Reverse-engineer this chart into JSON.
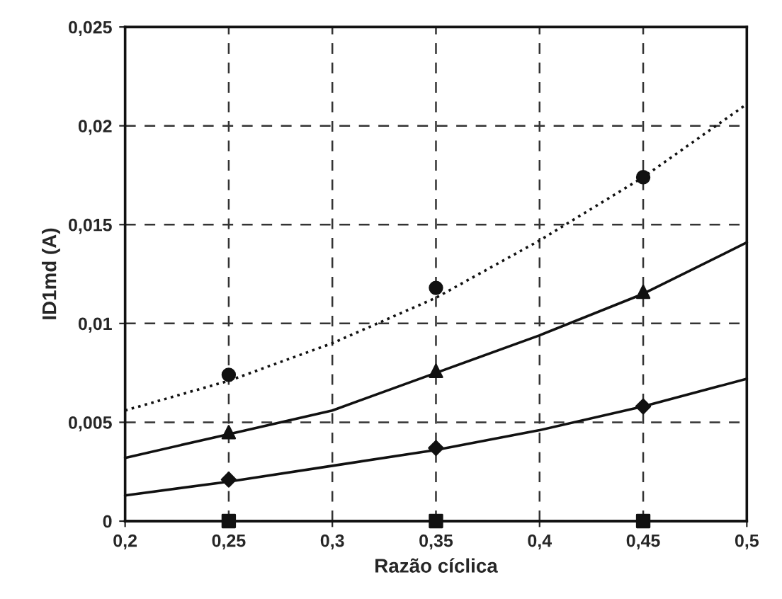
{
  "chart_data": {
    "type": "line",
    "xlabel": "Razão cíclica",
    "ylabel": "ID1md (A)",
    "xlim": [
      0.2,
      0.5
    ],
    "ylim": [
      0,
      0.025
    ],
    "xticks": [
      {
        "value": 0.2,
        "label": "0,2"
      },
      {
        "value": 0.25,
        "label": "0,25"
      },
      {
        "value": 0.3,
        "label": "0,3"
      },
      {
        "value": 0.35,
        "label": "0,35"
      },
      {
        "value": 0.4,
        "label": "0,4"
      },
      {
        "value": 0.45,
        "label": "0,45"
      },
      {
        "value": 0.5,
        "label": "0,5"
      }
    ],
    "yticks": [
      {
        "value": 0,
        "label": "0"
      },
      {
        "value": 0.005,
        "label": "0,005"
      },
      {
        "value": 0.01,
        "label": "0,01"
      },
      {
        "value": 0.015,
        "label": "0,015"
      },
      {
        "value": 0.02,
        "label": "0,02"
      },
      {
        "value": 0.025,
        "label": "0,025"
      }
    ],
    "grid": true,
    "legend": false,
    "series": [
      {
        "color": "#111111",
        "line_style": "dotted",
        "marker": "none",
        "x": [
          0.2,
          0.25,
          0.3,
          0.35,
          0.4,
          0.45,
          0.5
        ],
        "values": [
          0.0056,
          0.0071,
          0.009,
          0.0113,
          0.0142,
          0.0174,
          0.0211
        ]
      },
      {
        "color": "#111111",
        "line_style": "solid",
        "marker": "none",
        "x": [
          0.2,
          0.25,
          0.3,
          0.35,
          0.4,
          0.45,
          0.5
        ],
        "values": [
          0.0032,
          0.0044,
          0.0056,
          0.0075,
          0.0094,
          0.0115,
          0.0141
        ]
      },
      {
        "color": "#111111",
        "line_style": "solid",
        "marker": "none",
        "x": [
          0.2,
          0.25,
          0.3,
          0.35,
          0.4,
          0.45,
          0.5
        ],
        "values": [
          0.0013,
          0.002,
          0.0028,
          0.0036,
          0.0046,
          0.0058,
          0.0072
        ]
      },
      {
        "color": "#111111",
        "line_style": "solid",
        "marker": "none",
        "x": [
          0.2,
          0.5
        ],
        "values": [
          0,
          0
        ]
      },
      {
        "type": "scatter",
        "color": "#111111",
        "marker": "circle",
        "x": [
          0.25,
          0.35,
          0.45
        ],
        "values": [
          0.0074,
          0.0118,
          0.0174
        ]
      },
      {
        "type": "scatter",
        "color": "#111111",
        "marker": "triangle",
        "x": [
          0.25,
          0.35,
          0.45
        ],
        "values": [
          0.0045,
          0.0076,
          0.0116
        ]
      },
      {
        "type": "scatter",
        "color": "#111111",
        "marker": "diamond",
        "x": [
          0.25,
          0.35,
          0.45
        ],
        "values": [
          0.0021,
          0.0037,
          0.0058
        ]
      },
      {
        "type": "scatter",
        "color": "#111111",
        "marker": "square",
        "x": [
          0.25,
          0.35,
          0.45
        ],
        "values": [
          0,
          0,
          0
        ]
      }
    ]
  }
}
